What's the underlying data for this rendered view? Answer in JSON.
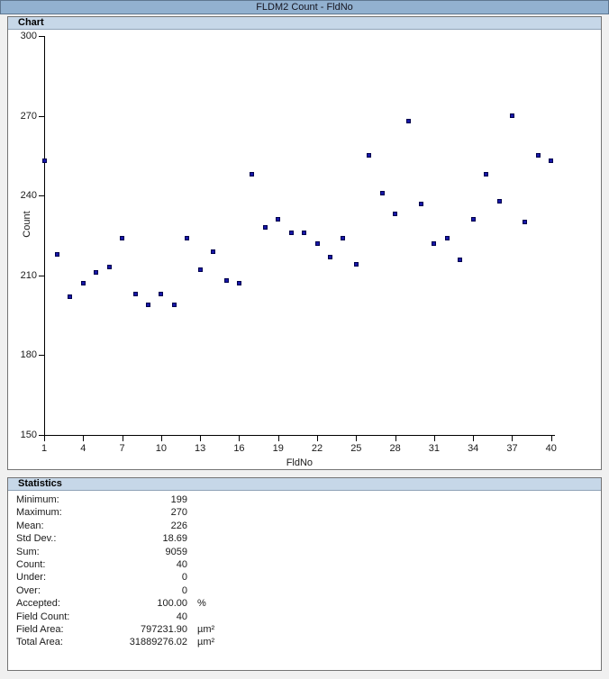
{
  "window": {
    "title": "FLDM2 Count - FldNo"
  },
  "colors": {
    "titlebar_bg": "#92b1d0",
    "panel_header_bg": "#c6d7e8",
    "panel_border": "#747474",
    "marker_fill": "#1616a8",
    "marker_border": "#00004c",
    "window_bg": "#f0f0f0"
  },
  "chart_panel": {
    "header": "Chart"
  },
  "stats_panel": {
    "header": "Statistics",
    "rows": [
      {
        "label": "Minimum:",
        "value": "199",
        "unit": ""
      },
      {
        "label": "Maximum:",
        "value": "270",
        "unit": ""
      },
      {
        "label": "Mean:",
        "value": "226",
        "unit": ""
      },
      {
        "label": "Std Dev.:",
        "value": "18.69",
        "unit": ""
      },
      {
        "label": "Sum:",
        "value": "9059",
        "unit": ""
      },
      {
        "label": "Count:",
        "value": "40",
        "unit": ""
      },
      {
        "label": "Under:",
        "value": "0",
        "unit": ""
      },
      {
        "label": "Over:",
        "value": "0",
        "unit": ""
      },
      {
        "label": "Accepted:",
        "value": "100.00",
        "unit": "%"
      },
      {
        "label": "Field Count:",
        "value": "40",
        "unit": ""
      },
      {
        "label": "Field Area:",
        "value": "797231.90",
        "unit": "µm²"
      },
      {
        "label": "Total Area:",
        "value": "31889276.02",
        "unit": "µm²"
      }
    ]
  },
  "chart_data": {
    "type": "scatter",
    "title": "FLDM2 Count - FldNo",
    "xlabel": "FldNo",
    "ylabel": "Count",
    "xlim": [
      1,
      40
    ],
    "ylim": [
      150,
      300
    ],
    "x_ticks": [
      1,
      4,
      7,
      10,
      13,
      16,
      19,
      22,
      25,
      28,
      31,
      34,
      37,
      40
    ],
    "y_ticks": [
      150,
      180,
      210,
      240,
      270,
      300
    ],
    "grid": false,
    "legend": null,
    "x": [
      1,
      2,
      3,
      4,
      5,
      6,
      7,
      8,
      9,
      10,
      11,
      12,
      13,
      14,
      15,
      16,
      17,
      18,
      19,
      20,
      21,
      22,
      23,
      24,
      25,
      26,
      27,
      28,
      29,
      30,
      31,
      32,
      33,
      34,
      35,
      36,
      37,
      38,
      39,
      40
    ],
    "y": [
      253,
      218,
      202,
      207,
      211,
      213,
      224,
      203,
      199,
      203,
      199,
      224,
      212,
      219,
      208,
      207,
      248,
      228,
      231,
      226,
      226,
      222,
      217,
      224,
      214,
      255,
      241,
      233,
      268,
      237,
      222,
      224,
      216,
      231,
      248,
      238,
      270,
      230,
      255,
      253
    ]
  }
}
